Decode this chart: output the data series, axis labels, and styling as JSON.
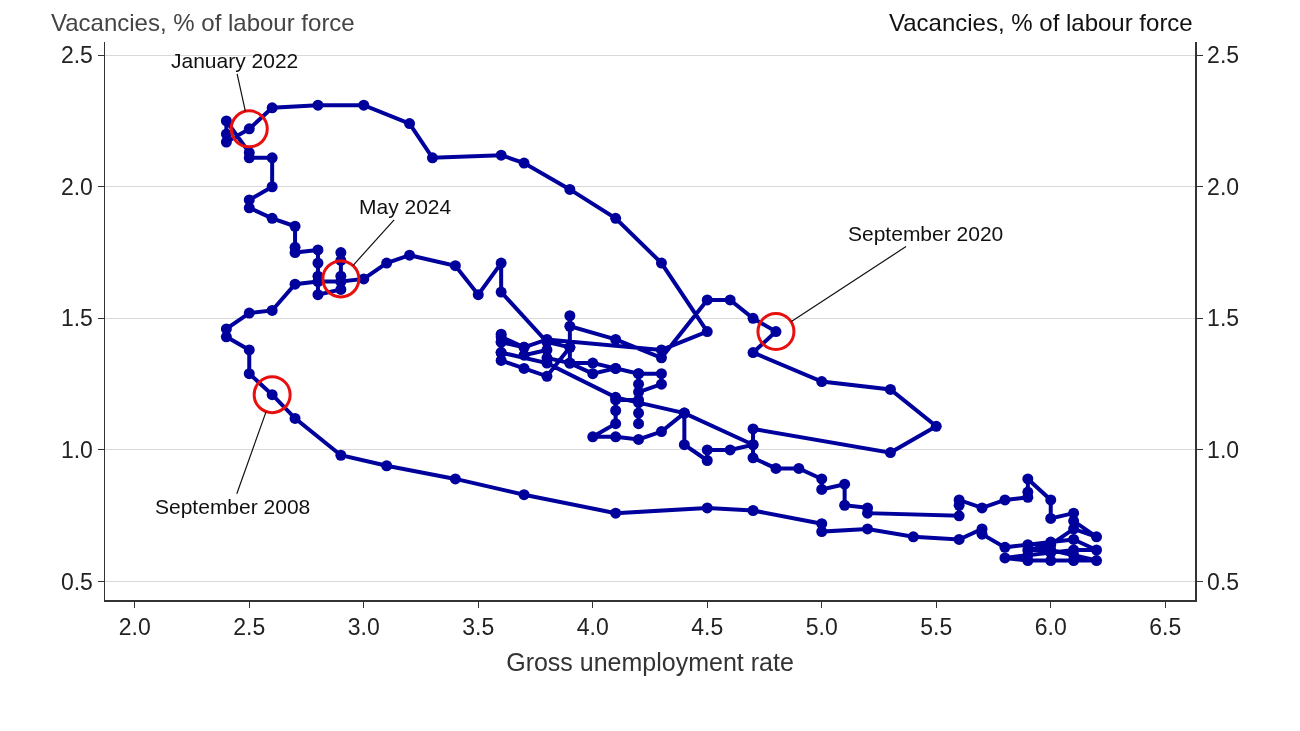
{
  "chart_data": {
    "type": "line",
    "xlabel": "Gross unemployment rate",
    "ylabel": "Vacancies, % of labour force",
    "y2label": "Vacancies, % of labour force",
    "series": [
      {
        "color": "#00009c",
        "marker": "circle",
        "line_style": "solid",
        "x": [
          4.2,
          4.2,
          4.1,
          4.0,
          3.9,
          3.9,
          3.8,
          3.6,
          3.6,
          3.5,
          3.4,
          3.2,
          3.1,
          3.0,
          2.9,
          2.8,
          2.7,
          2.6,
          2.5,
          2.4,
          2.4,
          2.5,
          2.5,
          2.6,
          2.7,
          2.9,
          3.1,
          3.4,
          3.7,
          4.1,
          4.5,
          4.7,
          5.0,
          5.0,
          5.2,
          5.4,
          5.6,
          5.7,
          5.7,
          5.8,
          5.9,
          6.0,
          6.1,
          6.2,
          6.1,
          6.0,
          5.9,
          5.8,
          5.9,
          6.0,
          6.1,
          6.2,
          6.1,
          6.0,
          5.9,
          6.0,
          6.1,
          6.2,
          6.1,
          6.1,
          6.0,
          6.0,
          5.9,
          5.9,
          5.9,
          5.8,
          5.7,
          5.6,
          5.6,
          5.6,
          5.2,
          5.2,
          5.1,
          5.1,
          5.0,
          5.0,
          4.9,
          4.8,
          4.7,
          4.7,
          4.6,
          4.5,
          4.5,
          4.4,
          4.4,
          4.3,
          4.2,
          4.1,
          4.0,
          4.1,
          4.1,
          4.1,
          4.2,
          4.2,
          4.2,
          4.2,
          4.3,
          4.3,
          4.2,
          4.1,
          4.0,
          3.9,
          3.8,
          3.8,
          3.7,
          3.7,
          3.6,
          3.6,
          3.6,
          3.6,
          3.7,
          3.8,
          3.9,
          3.9,
          3.9,
          4.1,
          4.3,
          4.5,
          4.6,
          4.7,
          4.8,
          4.7,
          5.0,
          5.3,
          5.5,
          5.3,
          4.7,
          4.7,
          4.4,
          4.2,
          4.1,
          3.8,
          3.6,
          3.6,
          3.6,
          3.7,
          3.8,
          4.3,
          4.5,
          4.3,
          4.1,
          3.9,
          3.7,
          3.6,
          3.3,
          3.2,
          3.0,
          2.8,
          2.6,
          2.5,
          2.4,
          2.4,
          2.4,
          2.5,
          2.5,
          2.6,
          2.6,
          2.5,
          2.5,
          2.6,
          2.7,
          2.7,
          2.7,
          2.8,
          2.8,
          2.8,
          2.8,
          2.9,
          2.9,
          2.9,
          2.9
        ],
        "values": [
          1.25,
          1.29,
          1.31,
          1.33,
          1.33,
          1.39,
          1.41,
          1.6,
          1.71,
          1.59,
          1.7,
          1.74,
          1.71,
          1.65,
          1.64,
          1.64,
          1.63,
          1.53,
          1.52,
          1.46,
          1.43,
          1.38,
          1.29,
          1.21,
          1.12,
          0.98,
          0.94,
          0.89,
          0.83,
          0.76,
          0.78,
          0.77,
          0.72,
          0.69,
          0.7,
          0.67,
          0.66,
          0.7,
          0.68,
          0.63,
          0.64,
          0.65,
          0.66,
          0.62,
          0.62,
          0.61,
          0.6,
          0.59,
          0.58,
          0.58,
          0.58,
          0.58,
          0.6,
          0.62,
          0.62,
          0.64,
          0.7,
          0.67,
          0.73,
          0.76,
          0.74,
          0.81,
          0.89,
          0.84,
          0.82,
          0.81,
          0.78,
          0.81,
          0.79,
          0.75,
          0.76,
          0.78,
          0.79,
          0.87,
          0.85,
          0.89,
          0.93,
          0.93,
          0.97,
          1.02,
          1.0,
          1.0,
          0.96,
          1.02,
          1.14,
          1.07,
          1.04,
          1.05,
          1.05,
          1.1,
          1.15,
          1.19,
          1.19,
          1.14,
          1.1,
          1.22,
          1.25,
          1.29,
          1.29,
          1.31,
          1.29,
          1.33,
          1.35,
          1.38,
          1.36,
          1.39,
          1.41,
          1.44,
          1.37,
          1.34,
          1.31,
          1.28,
          1.39,
          1.51,
          1.47,
          1.42,
          1.35,
          1.57,
          1.57,
          1.5,
          1.45,
          1.37,
          1.26,
          1.23,
          1.09,
          0.99,
          1.08,
          1.02,
          1.14,
          1.18,
          1.2,
          1.33,
          1.37,
          1.41,
          1.43,
          1.39,
          1.42,
          1.38,
          1.45,
          1.71,
          1.88,
          1.99,
          2.09,
          2.12,
          2.11,
          2.24,
          2.31,
          2.31,
          2.3,
          2.22,
          2.17,
          2.2,
          2.25,
          2.13,
          2.11,
          2.11,
          2.0,
          1.95,
          1.92,
          1.88,
          1.85,
          1.77,
          1.75,
          1.76,
          1.71,
          1.66,
          1.59,
          1.61,
          1.66,
          1.72,
          1.75
        ]
      }
    ],
    "xlim": [
      1.87,
      6.63
    ],
    "xticks": [
      {
        "value": 2,
        "label": "2.0"
      },
      {
        "value": 2.5,
        "label": "2.5"
      },
      {
        "value": 3,
        "label": "3.0"
      },
      {
        "value": 3.5,
        "label": "3.5"
      },
      {
        "value": 4,
        "label": "4.0"
      },
      {
        "value": 4.5,
        "label": "4.5"
      },
      {
        "value": 5,
        "label": "5.0"
      },
      {
        "value": 5.5,
        "label": "5.5"
      },
      {
        "value": 6,
        "label": "6.0"
      },
      {
        "value": 6.5,
        "label": "6.5"
      }
    ],
    "ylim": [
      0.43,
      2.55
    ],
    "yticks": [
      0.5,
      {
        "value": 1,
        "label": "1.0"
      },
      1.5,
      {
        "value": 2,
        "label": "2.0"
      },
      2.5
    ],
    "y2lim": [
      0.43,
      2.55
    ],
    "y2ticks": [
      0.5,
      {
        "value": 1,
        "label": "1.0"
      },
      1.5,
      {
        "value": 2,
        "label": "2.0"
      },
      2.5
    ],
    "grid": "y",
    "annotations": [
      {
        "text": "January 2022",
        "x": 2.5,
        "y": 2.22
      },
      {
        "text": "May 2024",
        "x": 2.9,
        "y": 1.65
      },
      {
        "text": "September 2020",
        "x": 4.8,
        "y": 1.45
      },
      {
        "text": "September 2008",
        "x": 2.6,
        "y": 1.21
      }
    ]
  }
}
